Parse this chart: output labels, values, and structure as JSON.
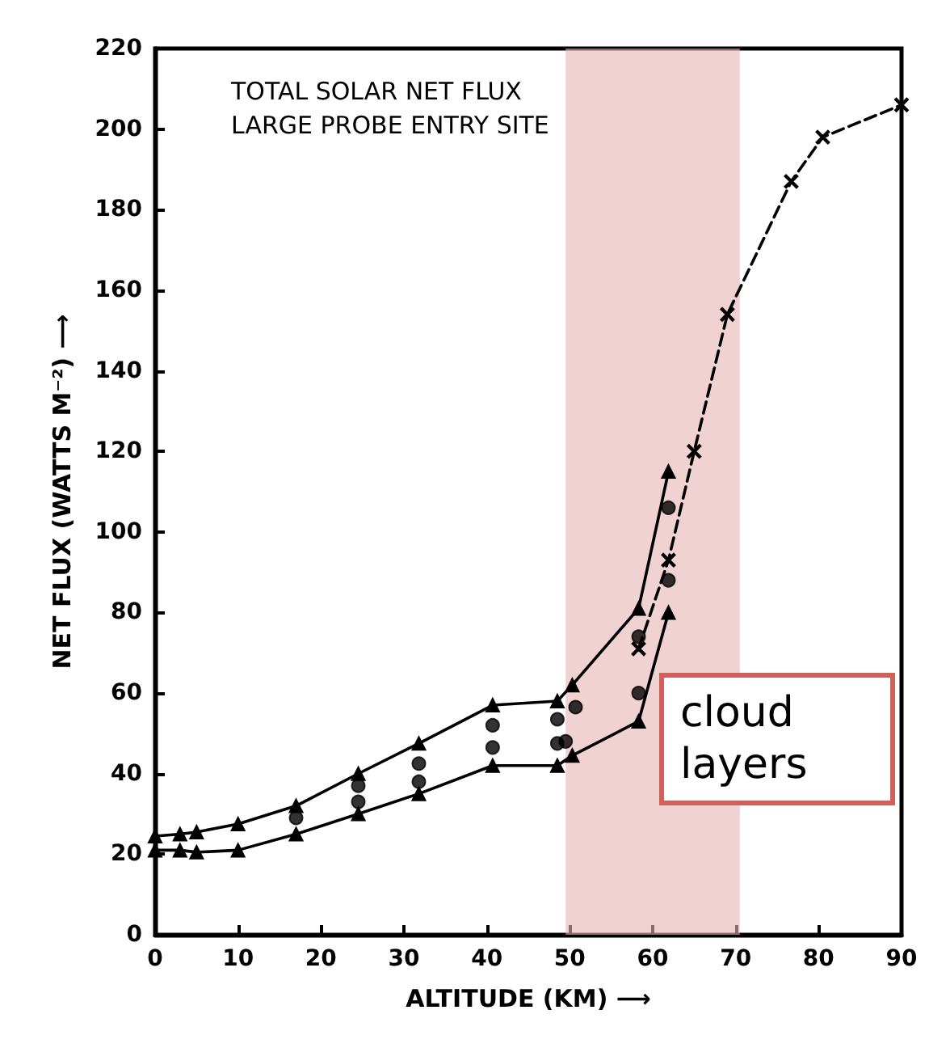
{
  "chart_data": {
    "type": "line",
    "title": "TOTAL SOLAR NET FLUX",
    "subtitle": "LARGE PROBE ENTRY SITE",
    "xlabel": "ALTITUDE (KM) ⟶",
    "ylabel": "NET FLUX (WATTS M⁻²) ⟶",
    "xlim": [
      0,
      90
    ],
    "xticks": [
      0,
      10,
      20,
      30,
      40,
      50,
      60,
      70,
      80,
      90
    ],
    "ylim": [
      0,
      220
    ],
    "yticks": [
      0,
      20,
      40,
      60,
      80,
      100,
      120,
      140,
      160,
      180,
      200,
      220
    ],
    "grid": false,
    "series": [
      {
        "color": "#000000",
        "marker": "triangle",
        "x": [
          0,
          3,
          5,
          10,
          17,
          24.5,
          31.8,
          40.7,
          48.5,
          50.3,
          58.3,
          61.9
        ],
        "values": [
          24.5,
          25,
          25.5,
          27.5,
          32,
          40,
          47.5,
          57,
          58,
          62,
          81,
          115
        ]
      },
      {
        "type": "scatter",
        "color": "#000000",
        "marker": "circle",
        "x": [
          17,
          24.5,
          31.8,
          40.7,
          48.5,
          50.7,
          58.3,
          61.9
        ],
        "values": [
          29,
          37,
          42.5,
          52,
          53.5,
          56.5,
          74,
          106
        ]
      },
      {
        "type": "scatter",
        "color": "#000000",
        "marker": "circle",
        "x": [
          24.5,
          31.8,
          40.7,
          48.5,
          49.5,
          58.3,
          61.9
        ],
        "values": [
          33,
          38,
          46.5,
          47.5,
          48,
          60,
          88
        ]
      },
      {
        "color": "#000000",
        "marker": "triangle",
        "x": [
          0,
          3,
          5,
          10,
          17,
          24.5,
          31.8,
          40.7,
          48.5,
          50.3,
          58.3,
          61.9
        ],
        "values": [
          21,
          21,
          20.5,
          21,
          25,
          30,
          35,
          42,
          42,
          44.5,
          53,
          80
        ]
      },
      {
        "color": "#000000",
        "marker": "cross",
        "line_style": "dashed",
        "x": [
          58.3,
          61.9,
          65,
          69,
          76.7,
          80.5,
          90
        ],
        "values": [
          71,
          93,
          120,
          154,
          187,
          198,
          206
        ]
      }
    ],
    "bands": [
      {
        "axis": "x",
        "from": 49.5,
        "to": 70.5,
        "label": "cloud layers",
        "color": "#e8b4b4"
      }
    ]
  }
}
